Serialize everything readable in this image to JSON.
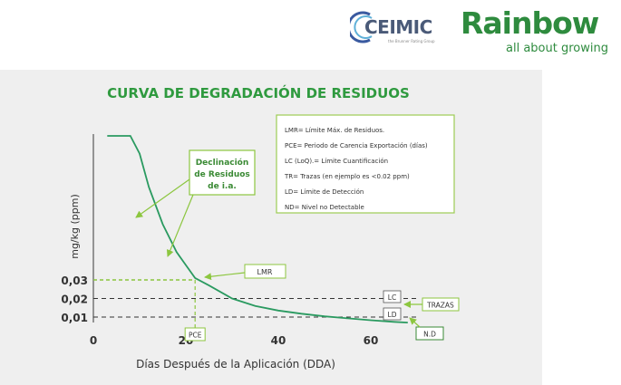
{
  "logos": {
    "ceimic": {
      "name": "CEIMIC",
      "tagline": "the Brunner Rating Group"
    },
    "rainbow": {
      "name": "Rainbow",
      "tagline": "all about growing"
    }
  },
  "colors": {
    "title": "#2f9a3f",
    "curve": "#2a9a60",
    "callout": "#8cc63f",
    "callout_text": "#3a8a34",
    "axis_text": "#333333",
    "box_border": "#9ccc54"
  },
  "chart_data": {
    "type": "line",
    "title": "CURVA DE DEGRADACIÓN DE RESIDUOS",
    "xlabel": "Días Después de la Aplicación (DDA)",
    "ylabel": "mg/kg (ppm)",
    "x_ticks": [
      "0",
      "20",
      "40",
      "60"
    ],
    "x_tick_values": [
      0,
      20,
      40,
      60
    ],
    "y_ticks": [
      "0,01",
      "0,02",
      "0,03"
    ],
    "y_tick_values": [
      0.01,
      0.02,
      0.03
    ],
    "series": [
      {
        "x": [
          3,
          5,
          8,
          10,
          12,
          15,
          18,
          20,
          22,
          25,
          30,
          35,
          40,
          45,
          50,
          55,
          60,
          65,
          68
        ],
        "y": [
          0.21,
          0.165,
          0.12,
          0.098,
          0.08,
          0.06,
          0.045,
          0.038,
          0.031,
          0.027,
          0.02,
          0.016,
          0.0135,
          0.0118,
          0.0104,
          0.0093,
          0.0083,
          0.0074,
          0.007
        ]
      }
    ],
    "reference_lines": [
      {
        "y": 0.03,
        "label": "LMR"
      },
      {
        "y": 0.02,
        "label": "LC"
      },
      {
        "y": 0.01,
        "label": "LD"
      }
    ],
    "pce_x": 22,
    "annotations": {
      "decline": [
        "Declinación",
        "de Residuos",
        "de i.a."
      ],
      "lmr": "LMR",
      "lc": "LC",
      "ld": "LD",
      "trazas": "TRAZAS",
      "nd": "N.D",
      "pce": "PCE"
    },
    "legend": [
      "LMR= Límite Máx. de Residuos.",
      "PCE= Periodo de Carencia Exportación (días)",
      "LC (LoQ).= Límite Cuantificación",
      "TR= Trazas (en ejemplo es <0.02 ppm)",
      "LD= Límite de Detección",
      "ND= Nivel no Detectable"
    ],
    "grid": false
  }
}
